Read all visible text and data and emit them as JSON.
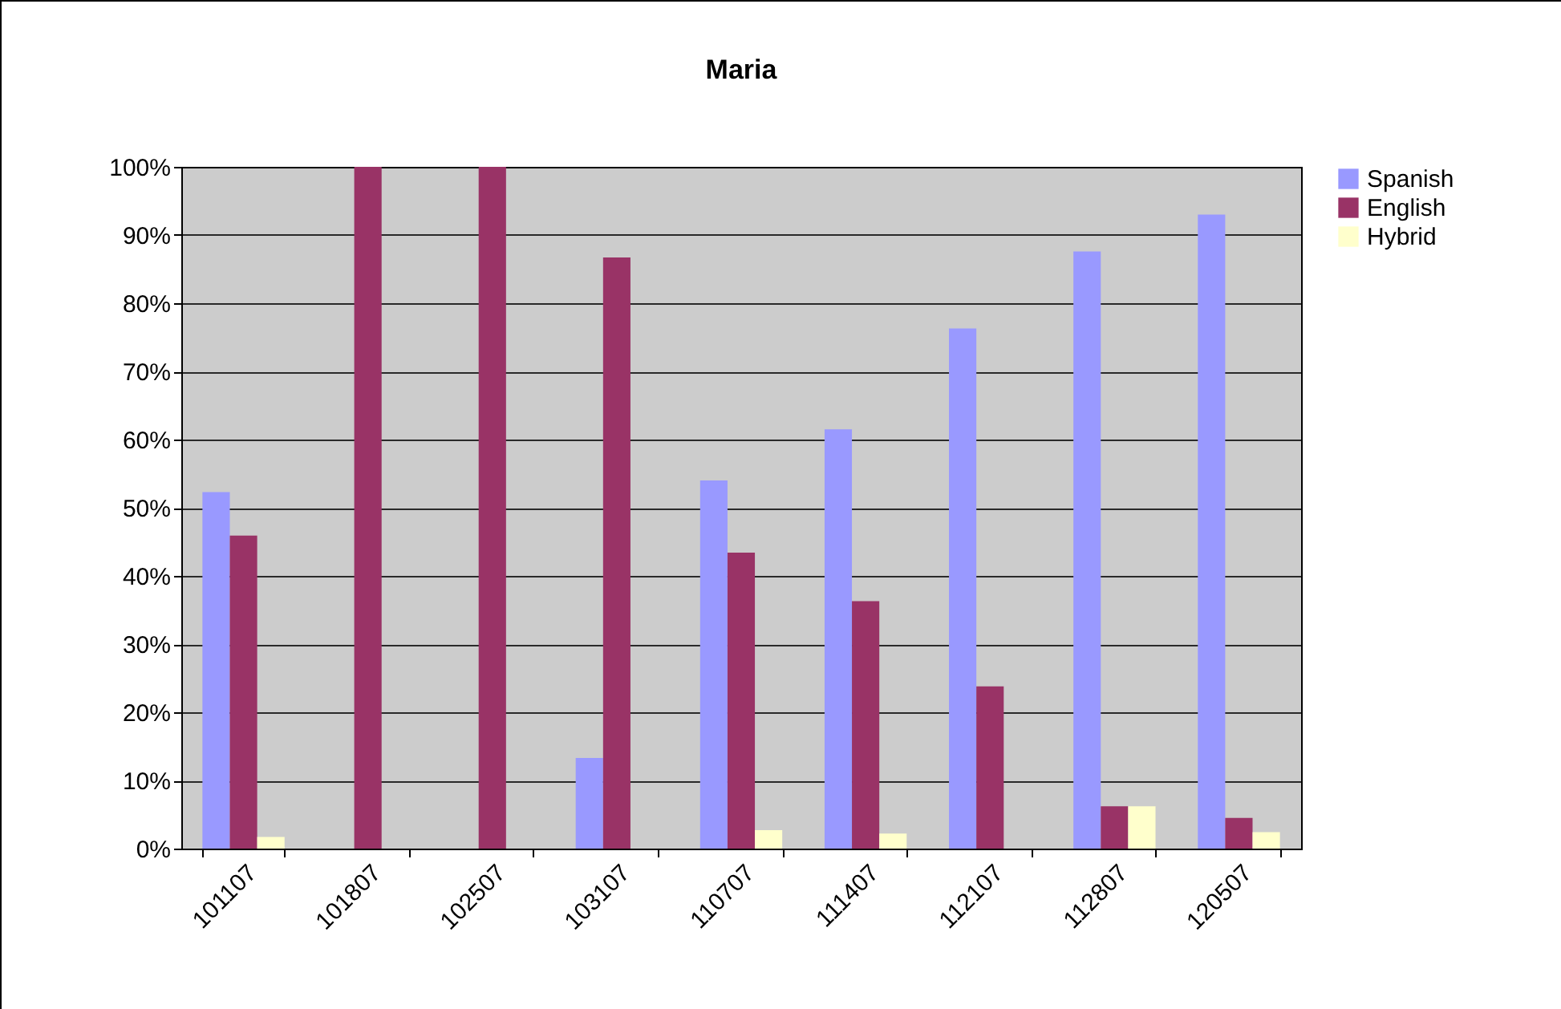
{
  "chart_data": {
    "type": "bar",
    "title": "Maria",
    "categories": [
      "101107",
      "101807",
      "102507",
      "103107",
      "110707",
      "111407",
      "112107",
      "112807",
      "120507"
    ],
    "series": [
      {
        "name": "Spanish",
        "color": "#9999ff",
        "values": [
          52.3,
          0,
          0,
          13.3,
          54,
          61.5,
          76.3,
          87.6,
          93
        ]
      },
      {
        "name": "English",
        "color": "#993366",
        "values": [
          45.9,
          100,
          100,
          86.7,
          43.4,
          36.3,
          23.8,
          6.2,
          4.5
        ]
      },
      {
        "name": "Hybrid",
        "color": "#ffffcc",
        "values": [
          1.7,
          0,
          0,
          0,
          2.7,
          2.2,
          0,
          6.2,
          2.4
        ]
      }
    ],
    "ylim": [
      0,
      100
    ],
    "yticks": [
      {
        "value": 0,
        "label": "0%"
      },
      {
        "value": 10,
        "label": "10%"
      },
      {
        "value": 20,
        "label": "20%"
      },
      {
        "value": 30,
        "label": "30%"
      },
      {
        "value": 40,
        "label": "40%"
      },
      {
        "value": 50,
        "label": "50%"
      },
      {
        "value": 60,
        "label": "60%"
      },
      {
        "value": 70,
        "label": "70%"
      },
      {
        "value": 80,
        "label": "80%"
      },
      {
        "value": 90,
        "label": "90%"
      },
      {
        "value": 100,
        "label": "100%"
      }
    ],
    "grid": "y",
    "legend": "right"
  }
}
